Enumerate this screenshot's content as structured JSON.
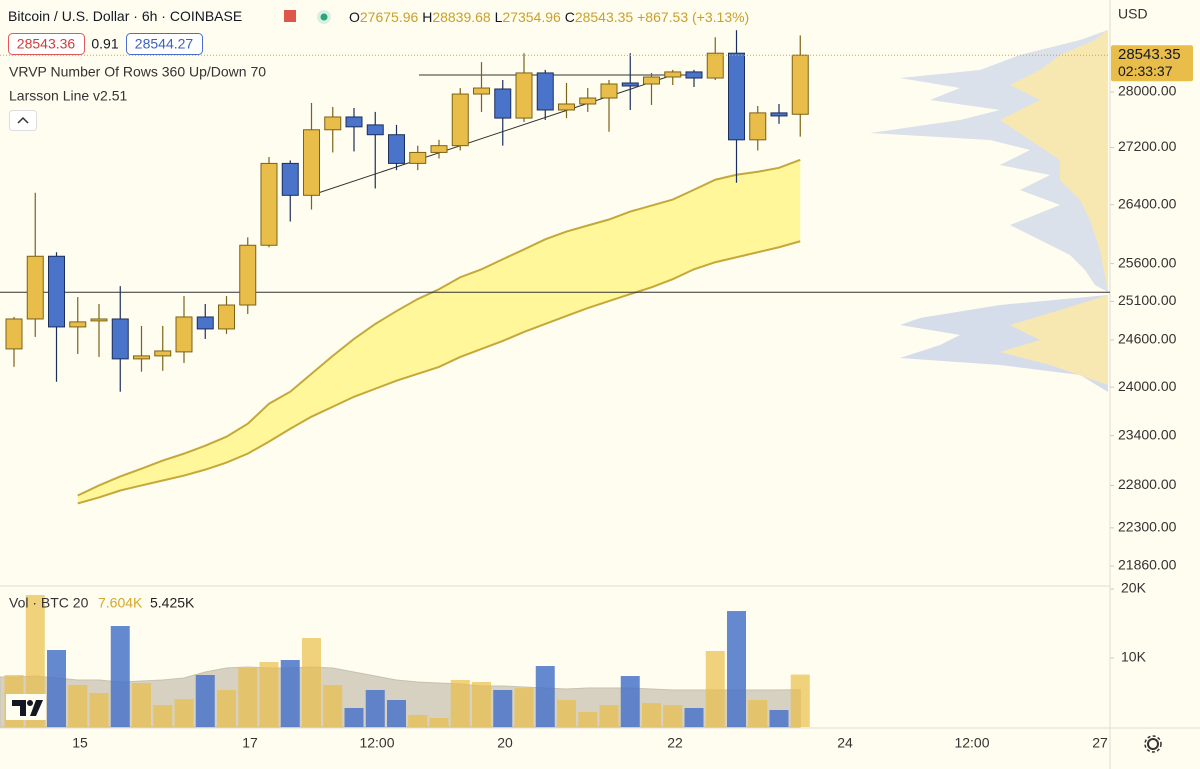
{
  "chart_data": {
    "type": "candlestick",
    "title": "Bitcoin / U.S. Dollar · 6h · COINBASE",
    "ohlc_labels": [
      "O",
      "H",
      "L",
      "C"
    ],
    "change": "+867.53",
    "change_pct": "(+3.13%)",
    "bid": "28543.36",
    "spread": "0.91",
    "ask": "28544.27",
    "indicators": [
      "VRVP Number Of Rows 360 Up/Down 70",
      "Larsson Line v2.51"
    ],
    "currency": "USD",
    "up_color": "#e9bd4a",
    "down_color": "#4a74c9",
    "log": true,
    "ylim": [
      21644,
      29378
    ],
    "yticks": [
      {
        "value": 21860,
        "label": "21860.00"
      },
      {
        "value": 22300,
        "label": "22300.00"
      },
      {
        "value": 22800,
        "label": "22800.00"
      },
      {
        "value": 23400,
        "label": "23400.00"
      },
      {
        "value": 24000,
        "label": "24000.00"
      },
      {
        "value": 24600,
        "label": "24600.00"
      },
      {
        "value": 25100,
        "label": "25100.00"
      },
      {
        "value": 25600,
        "label": "25600.00"
      },
      {
        "value": 26400,
        "label": "26400.00"
      },
      {
        "value": 27200,
        "label": "27200.00"
      },
      {
        "value": 28000,
        "label": "28000.00"
      }
    ],
    "time_labels": [
      "15",
      "17",
      "12:00",
      "20",
      "22",
      "24",
      "12:00",
      "27"
    ],
    "open": [
      24484,
      24870,
      25698,
      24767,
      24845,
      24870,
      24357,
      24395,
      24446,
      24896,
      24741,
      25052,
      25846,
      26975,
      26529,
      27453,
      27637,
      27523,
      27382,
      26975,
      27130,
      27226,
      27970,
      28044,
      27621,
      28280,
      27738,
      27825,
      27912,
      28132,
      28117,
      28220,
      28295,
      28205,
      28573,
      27309,
      27696,
      27675.96
    ],
    "high": [
      24896,
      26565,
      25752,
      25156,
      25065,
      25300,
      24780,
      24780,
      25169,
      25065,
      25169,
      25953,
      27065,
      27017,
      27840,
      27782,
      27767,
      27710,
      27523,
      27226,
      27309,
      28058,
      28440,
      28176,
      28573,
      28325,
      28132,
      28058,
      28176,
      28573,
      28280,
      28325,
      28325,
      28812,
      28917,
      27796,
      27825,
      28839.68
    ],
    "low": [
      24256,
      24638,
      24068,
      24420,
      24382,
      23943,
      24195,
      24206,
      24306,
      24612,
      24677,
      24935,
      25819,
      26168,
      26333,
      27130,
      27144,
      26624,
      26880,
      26880,
      27045,
      27158,
      27710,
      27226,
      27565,
      27594,
      27621,
      27710,
      27424,
      27738,
      27811,
      28102,
      28073,
      28176,
      26703,
      27158,
      27538,
      27354.96
    ],
    "close": [
      24870,
      25698,
      24767,
      24832,
      24870,
      24357,
      24395,
      24458,
      24896,
      24741,
      25052,
      25846,
      26975,
      26529,
      27453,
      27637,
      27495,
      27382,
      26975,
      27130,
      27226,
      27970,
      28058,
      27621,
      28280,
      27738,
      27825,
      27912,
      28117,
      28088,
      28220,
      28295,
      28205,
      28573,
      27309,
      27696,
      27652,
      28543.35
    ],
    "countdown": "02:33:37",
    "hline": 25220,
    "band_color": "#fff68a",
    "band_line_color": "#c4a83a",
    "band_upper": [
      null,
      null,
      null,
      22680,
      22799,
      22906,
      23000,
      23097,
      23181,
      23277,
      23387,
      23546,
      23793,
      23943,
      24168,
      24395,
      24612,
      24805,
      24973,
      25130,
      25259,
      25418,
      25524,
      25658,
      25790,
      25926,
      26032,
      26114,
      26196,
      26305,
      26387,
      26470,
      26606,
      26746,
      26815,
      26857,
      26913,
      27026
    ],
    "band_lower": [
      null,
      null,
      null,
      22586,
      22657,
      22739,
      22799,
      22858,
      22917,
      22988,
      23073,
      23181,
      23327,
      23484,
      23633,
      23756,
      23880,
      23980,
      24081,
      24168,
      24255,
      24382,
      24484,
      24586,
      24702,
      24805,
      24909,
      25012,
      25104,
      25195,
      25285,
      25392,
      25524,
      25618,
      25685,
      25752,
      25819,
      25900
    ],
    "volume": {
      "title": "Vol · BTC 20",
      "last_label": "7.604K",
      "ma_label": "5.425K",
      "ylim": [
        0,
        20150
      ],
      "yticks": [
        {
          "value": 10000,
          "label": "10K"
        },
        {
          "value": 20000,
          "label": "20K"
        }
      ],
      "values": [
        7536,
        19130,
        11160,
        6087,
        4928,
        14640,
        6377,
        3188,
        4058,
        7536,
        5362,
        8551,
        9420,
        9710,
        12900,
        6087,
        2754,
        5362,
        3913,
        1739,
        1304,
        6812,
        6522,
        5362,
        5652,
        8841,
        3913,
        2174,
        3188,
        7391,
        3478,
        3188,
        2754,
        11014,
        16812,
        3913,
        2464,
        7604
      ],
      "ma_values": [
        7246,
        7391,
        7101,
        6812,
        6812,
        6522,
        6667,
        6812,
        7101,
        7971,
        8551,
        8696,
        8551,
        8551,
        8696,
        8551,
        7971,
        7391,
        6812,
        6522,
        6377,
        6232,
        5942,
        5942,
        5797,
        5652,
        5507,
        5652,
        5652,
        5652,
        5507,
        5362,
        5362,
        5362,
        5362,
        5362,
        5362,
        5425
      ]
    }
  }
}
